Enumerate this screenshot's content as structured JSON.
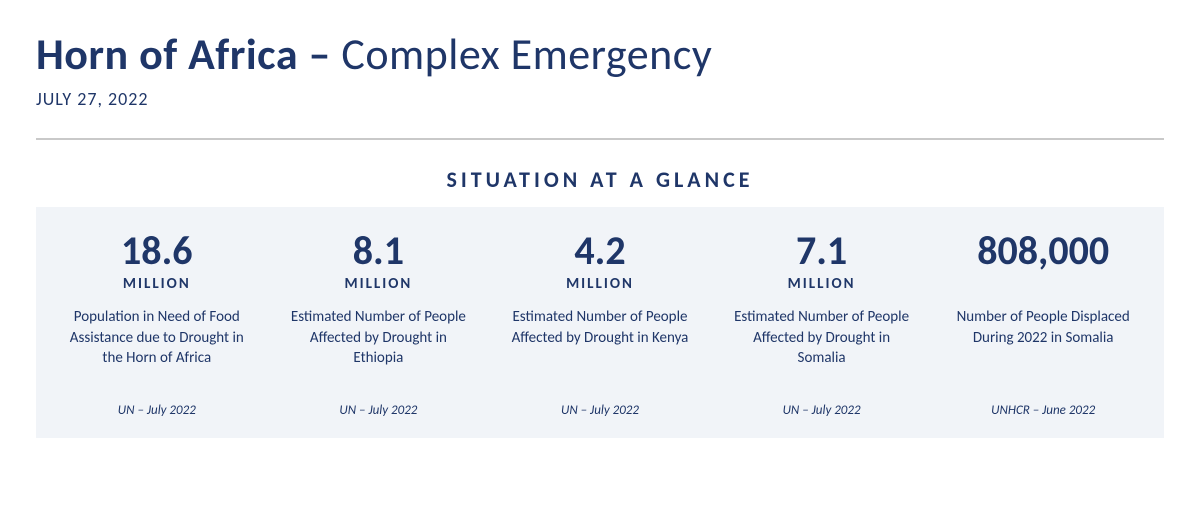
{
  "colors": {
    "text": "#1f3668",
    "rule": "#c9c9c9",
    "panel_bg": "#f1f4f8",
    "page_bg": "#ffffff"
  },
  "typography": {
    "title_fontsize": 44,
    "date_fontsize": 18,
    "section_label_fontsize": 22,
    "stat_value_fontsize": 40,
    "stat_unit_fontsize": 15,
    "stat_desc_fontsize": 15,
    "stat_source_fontsize": 13
  },
  "header": {
    "title_bold": "Horn of Africa –",
    "title_light": " Complex Emergency",
    "date": "JULY 27, 2022"
  },
  "section": {
    "label": "SITUATION AT A GLANCE"
  },
  "stats": [
    {
      "value": "18.6",
      "unit": "MILLION",
      "desc": "Population in Need of Food Assistance due to Drought in the Horn of Africa",
      "source": "UN – July 2022"
    },
    {
      "value": "8.1",
      "unit": "MILLION",
      "desc": "Estimated Number of People Affected by Drought in Ethiopia",
      "source": "UN – July 2022"
    },
    {
      "value": "4.2",
      "unit": "MILLION",
      "desc": "Estimated Number of People Affected by Drought in Kenya",
      "source": "UN – July 2022"
    },
    {
      "value": "7.1",
      "unit": "MILLION",
      "desc": "Estimated Number of People Affected by Drought in Somalia",
      "source": "UN – July 2022"
    },
    {
      "value": "808,000",
      "unit": "",
      "desc": "Number of People Displaced During 2022 in Somalia",
      "source": "UNHCR – June 2022"
    }
  ]
}
